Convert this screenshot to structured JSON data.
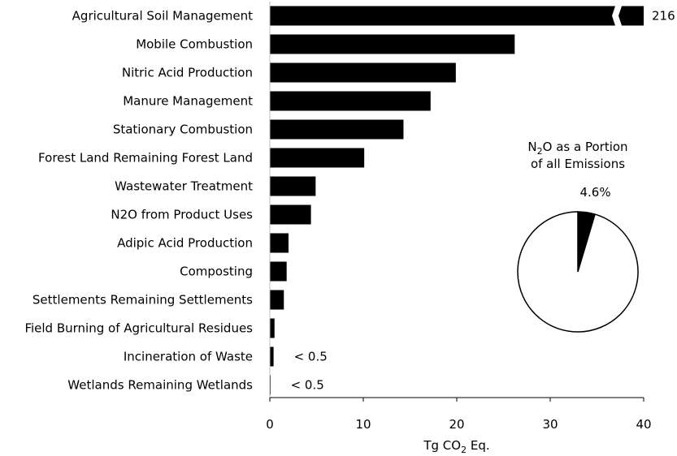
{
  "chart_data": [
    {
      "type": "bar",
      "orientation": "horizontal",
      "categories": [
        "Agricultural Soil Management",
        "Mobile Combustion",
        "Nitric Acid Production",
        "Manure Management",
        "Stationary Combustion",
        "Forest Land Remaining Forest Land",
        "Wastewater Treatment",
        "N2O from Product Uses",
        "Adipic Acid Production",
        "Composting",
        "Settlements Remaining Settlements",
        "Field Burning of Agricultural Residues",
        "Incineration of Waste",
        "Wetlands Remaining Wetlands"
      ],
      "values": [
        216,
        26.2,
        19.9,
        17.2,
        14.3,
        10.1,
        4.9,
        4.4,
        2.0,
        1.8,
        1.5,
        0.5,
        0.4,
        0.05
      ],
      "value_labels": {
        "0": "216",
        "12": "< 0.5",
        "13": "< 0.5"
      },
      "axis_break": true,
      "xlim": [
        0,
        40
      ],
      "xticks": [
        "0",
        "10",
        "20",
        "30",
        "40"
      ],
      "xlabel": {
        "main": "Tg CO",
        "sub": "2",
        "rest": " Eq."
      },
      "bar_color": "#000000"
    },
    {
      "type": "pie",
      "title_line1": {
        "main": "N",
        "sub": "2",
        "rest": "O as a Portion"
      },
      "title_line2": "of all Emissions",
      "slices": [
        {
          "label": "4.6%",
          "value": 4.6,
          "color": "#000000"
        },
        {
          "label": "",
          "value": 95.4,
          "color": "#ffffff"
        }
      ]
    }
  ]
}
